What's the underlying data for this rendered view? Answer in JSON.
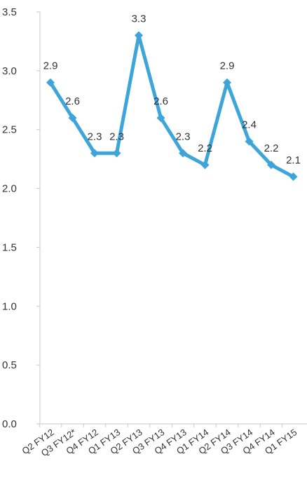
{
  "chart_data": {
    "type": "line",
    "categories": [
      "Q2 FY12",
      "Q3 FY12*",
      "Q4 FY12",
      "Q1 FY13",
      "Q2 FY13",
      "Q3 FY13",
      "Q4 FY13",
      "Q1 FY14",
      "Q2 FY14",
      "Q3 FY14",
      "Q4 FY14",
      "Q1 FY15"
    ],
    "values": [
      2.9,
      2.6,
      2.3,
      2.3,
      3.3,
      2.6,
      2.3,
      2.2,
      2.9,
      2.4,
      2.2,
      2.1
    ],
    "data_labels": [
      "2.9",
      "2.6",
      "2.3",
      "2.3",
      "3.3",
      "2.6",
      "2.3",
      "2.2",
      "2.9",
      "2.4",
      "2.2",
      "2.1"
    ],
    "yticks": [
      0.0,
      0.5,
      1.0,
      1.5,
      2.0,
      2.5,
      3.0,
      3.5
    ],
    "ytick_labels": [
      "0.0",
      "0.5",
      "1.0",
      "1.5",
      "2.0",
      "2.5",
      "3.0",
      "3.5"
    ],
    "ylim": [
      0,
      3.5
    ],
    "title": "",
    "xlabel": "",
    "ylabel": "",
    "grid": false,
    "legend": "none",
    "line_color": "#3da5d9",
    "axis_color": "#c8c8c8"
  }
}
